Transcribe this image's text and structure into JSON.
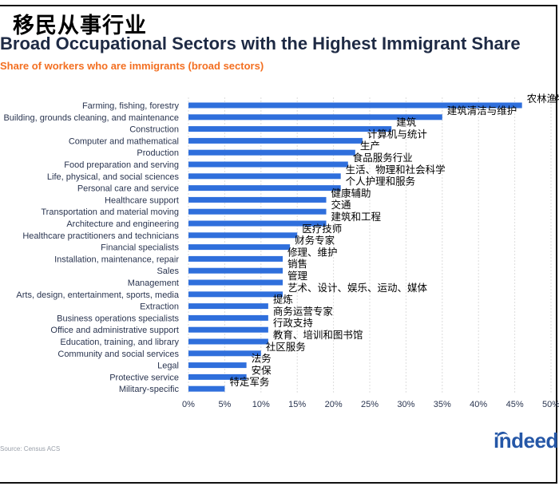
{
  "header": {
    "title_cn": "移民从事行业",
    "title_en": "Broad Occupational Sectors with the Highest Immigrant Share",
    "subtitle": "Share of workers who are immigrants (broad sectors)"
  },
  "footer": {
    "source": "Source: Census ACS",
    "logo": "indeed"
  },
  "colors": {
    "bar": "#2f6fdc",
    "subtitle": "#f36f21",
    "logo": "#2557a7"
  },
  "chart_data": {
    "type": "bar",
    "orientation": "horizontal",
    "categories": [
      "Farming, fishing, forestry",
      "Building, grounds cleaning, and maintenance",
      "Construction",
      "Computer and mathematical",
      "Production",
      "Food preparation and serving",
      "Life, physical, and social sciences",
      "Personal care and service",
      "Healthcare support",
      "Transportation and material moving",
      "Architecture and engineering",
      "Healthcare practitioners and technicians",
      "Financial specialists",
      "Installation, maintenance, repair",
      "Sales",
      "Management",
      "Arts, design, entertainment, sports, media",
      "Extraction",
      "Business operations specialists",
      "Office and administrative support",
      "Education, training, and library",
      "Community and social services",
      "Legal",
      "Protective service",
      "Military-specific"
    ],
    "labels_cn": [
      "农林渔牧",
      "建筑清洁与维护",
      "建筑",
      "计算机与统计",
      "生产",
      "食品服务行业",
      "生活、物理和社会科学",
      "个人护理和服务",
      "健康辅助",
      "交通",
      "建筑和工程",
      "医疗技师",
      "财务专家",
      "修理、维护",
      "销售",
      "管理",
      "艺术、设计、娱乐、运动、媒体",
      "提炼",
      "商务运营专家",
      "行政支持",
      "教育、培训和图书馆",
      "社区服务",
      "法务",
      "安保",
      "特定军务"
    ],
    "values": [
      46,
      35,
      28,
      24,
      23,
      22,
      21,
      21,
      19,
      19,
      19,
      15,
      14,
      13,
      13,
      13,
      13,
      11,
      11,
      11,
      11,
      10,
      8,
      8,
      5
    ],
    "x_ticks": [
      "0%",
      "5%",
      "10%",
      "15%",
      "20%",
      "25%",
      "30%",
      "35%",
      "40%",
      "45%",
      "50%"
    ],
    "xlim": [
      0,
      50
    ],
    "unit": "%",
    "grid": true
  }
}
